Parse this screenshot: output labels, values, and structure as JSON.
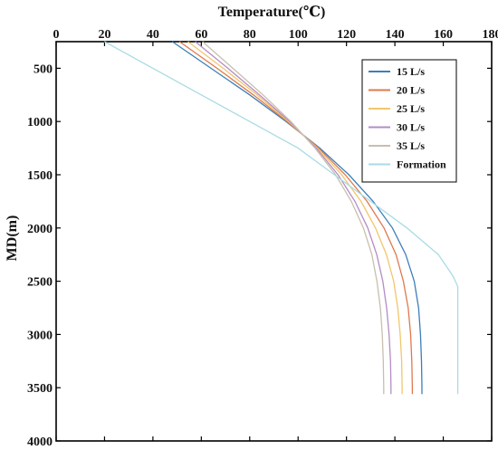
{
  "chart_data": {
    "type": "line",
    "x_axis_label": "Temperature(℃)",
    "y_axis_label": "MD(m)",
    "x_axis_position": "top",
    "y_axis_reversed": true,
    "xlim": [
      0,
      180
    ],
    "ylim": [
      250,
      4000
    ],
    "x_ticks": [
      0,
      20,
      40,
      60,
      80,
      100,
      120,
      140,
      160,
      180
    ],
    "y_ticks": [
      500,
      1000,
      1500,
      2000,
      2500,
      3000,
      3500,
      4000
    ],
    "grid": false,
    "legend_position": "top-right",
    "series": [
      {
        "name": "15 L/s",
        "color": "#3c7fb8",
        "points": [
          [
            48.0,
            250
          ],
          [
            64.0,
            500
          ],
          [
            80.0,
            750
          ],
          [
            95.0,
            1000
          ],
          [
            109.0,
            1250
          ],
          [
            121.0,
            1500
          ],
          [
            131.0,
            1750
          ],
          [
            139.0,
            2000
          ],
          [
            144.5,
            2250
          ],
          [
            148.0,
            2500
          ],
          [
            149.8,
            2750
          ],
          [
            150.6,
            3000
          ],
          [
            151.0,
            3250
          ],
          [
            151.2,
            3500
          ],
          [
            151.2,
            3560
          ]
        ]
      },
      {
        "name": "20 L/s",
        "color": "#e0784c",
        "points": [
          [
            51.0,
            250
          ],
          [
            66.5,
            500
          ],
          [
            81.5,
            750
          ],
          [
            95.5,
            1000
          ],
          [
            108.5,
            1250
          ],
          [
            119.5,
            1500
          ],
          [
            128.5,
            1750
          ],
          [
            135.5,
            2000
          ],
          [
            140.5,
            2250
          ],
          [
            143.5,
            2500
          ],
          [
            145.5,
            2750
          ],
          [
            146.5,
            3000
          ],
          [
            147.0,
            3250
          ],
          [
            147.2,
            3500
          ],
          [
            147.2,
            3560
          ]
        ]
      },
      {
        "name": "25 L/s",
        "color": "#f2c66a",
        "points": [
          [
            54.5,
            250
          ],
          [
            69.0,
            500
          ],
          [
            83.0,
            750
          ],
          [
            96.0,
            1000
          ],
          [
            108.0,
            1250
          ],
          [
            118.0,
            1500
          ],
          [
            126.0,
            1750
          ],
          [
            132.0,
            2000
          ],
          [
            136.5,
            2250
          ],
          [
            139.5,
            2500
          ],
          [
            141.2,
            2750
          ],
          [
            142.2,
            3000
          ],
          [
            142.8,
            3250
          ],
          [
            143.0,
            3500
          ],
          [
            143.0,
            3560
          ]
        ]
      },
      {
        "name": "30 L/s",
        "color": "#b48cc6",
        "points": [
          [
            57.5,
            250
          ],
          [
            71.0,
            500
          ],
          [
            84.0,
            750
          ],
          [
            96.5,
            1000
          ],
          [
            107.5,
            1250
          ],
          [
            116.5,
            1500
          ],
          [
            123.5,
            1750
          ],
          [
            128.8,
            2000
          ],
          [
            132.5,
            2250
          ],
          [
            135.0,
            2500
          ],
          [
            136.6,
            2750
          ],
          [
            137.6,
            3000
          ],
          [
            138.2,
            3250
          ],
          [
            138.4,
            3500
          ],
          [
            138.4,
            3560
          ]
        ]
      },
      {
        "name": "35 L/s",
        "color": "#c8bfae",
        "points": [
          [
            60.5,
            250
          ],
          [
            73.0,
            500
          ],
          [
            85.5,
            750
          ],
          [
            97.0,
            1000
          ],
          [
            107.0,
            1250
          ],
          [
            115.5,
            1500
          ],
          [
            122.0,
            1750
          ],
          [
            127.0,
            2000
          ],
          [
            130.5,
            2250
          ],
          [
            132.6,
            2500
          ],
          [
            134.0,
            2750
          ],
          [
            134.8,
            3000
          ],
          [
            135.2,
            3250
          ],
          [
            135.4,
            3500
          ],
          [
            135.4,
            3560
          ]
        ]
      },
      {
        "name": "Formation",
        "color": "#a9dbe6",
        "points": [
          [
            20.0,
            250
          ],
          [
            40.0,
            500
          ],
          [
            60.0,
            750
          ],
          [
            80.0,
            1000
          ],
          [
            100.0,
            1250
          ],
          [
            115.0,
            1500
          ],
          [
            130.0,
            1750
          ],
          [
            145.0,
            2000
          ],
          [
            158.0,
            2250
          ],
          [
            164.0,
            2450
          ],
          [
            166.0,
            2550
          ],
          [
            166.0,
            3000
          ],
          [
            166.0,
            3560
          ]
        ]
      }
    ]
  }
}
